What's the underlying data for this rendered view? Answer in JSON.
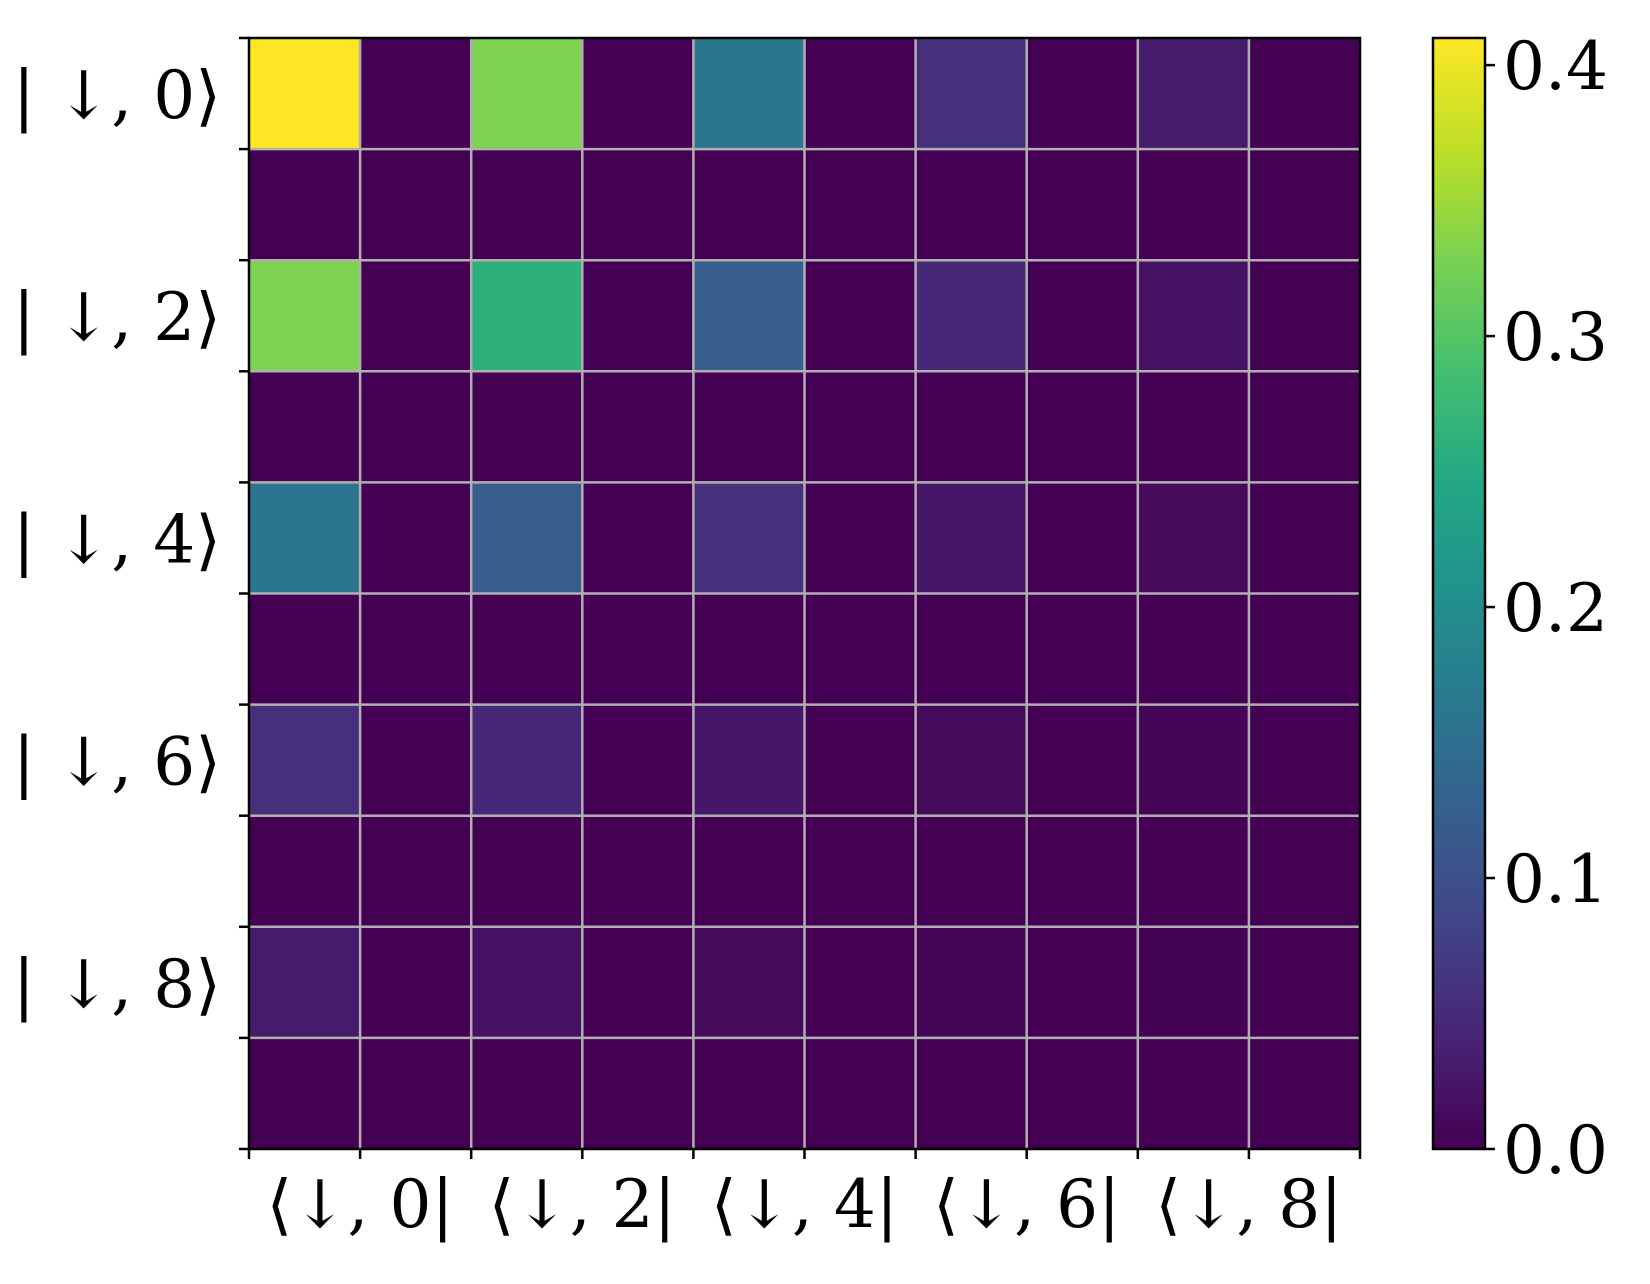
{
  "chart_data": {
    "type": "heatmap",
    "title": "",
    "xlabel": "",
    "ylabel": "",
    "x_tick_labels": [
      "⟨↓, 0|",
      "⟨↓, 2|",
      "⟨↓, 4|",
      "⟨↓, 6|",
      "⟨↓, 8|"
    ],
    "y_tick_labels": [
      "| ↓, 0⟩",
      "| ↓, 2⟩",
      "| ↓, 4⟩",
      "| ↓, 6⟩",
      "| ↓, 8⟩"
    ],
    "colorbar": {
      "range": [
        0.0,
        0.41
      ],
      "ticks": [
        0.0,
        0.1,
        0.2,
        0.3,
        0.4
      ],
      "tick_labels": [
        "0.0",
        "0.1",
        "0.2",
        "0.3",
        "0.4"
      ],
      "colormap": "viridis"
    },
    "grid": true,
    "grid_color": "#b0b0b0",
    "values": [
      [
        0.41,
        0.0,
        0.33,
        0.0,
        0.16,
        0.0,
        0.055,
        0.0,
        0.03,
        0.0
      ],
      [
        0.0,
        0.0,
        0.0,
        0.0,
        0.0,
        0.0,
        0.0,
        0.0,
        0.0,
        0.0
      ],
      [
        0.33,
        0.0,
        0.26,
        0.0,
        0.12,
        0.0,
        0.045,
        0.0,
        0.02,
        0.0
      ],
      [
        0.0,
        0.0,
        0.0,
        0.0,
        0.0,
        0.0,
        0.0,
        0.0,
        0.0,
        0.0
      ],
      [
        0.16,
        0.0,
        0.12,
        0.0,
        0.055,
        0.0,
        0.025,
        0.0,
        0.01,
        0.0
      ],
      [
        0.0,
        0.0,
        0.0,
        0.0,
        0.0,
        0.0,
        0.0,
        0.0,
        0.0,
        0.0
      ],
      [
        0.055,
        0.0,
        0.045,
        0.0,
        0.025,
        0.0,
        0.01,
        0.0,
        0.005,
        0.0
      ],
      [
        0.0,
        0.0,
        0.0,
        0.0,
        0.0,
        0.0,
        0.0,
        0.0,
        0.0,
        0.0
      ],
      [
        0.03,
        0.0,
        0.02,
        0.0,
        0.01,
        0.0,
        0.005,
        0.0,
        0.002,
        0.0
      ],
      [
        0.0,
        0.0,
        0.0,
        0.0,
        0.0,
        0.0,
        0.0,
        0.0,
        0.0,
        0.0
      ]
    ]
  }
}
